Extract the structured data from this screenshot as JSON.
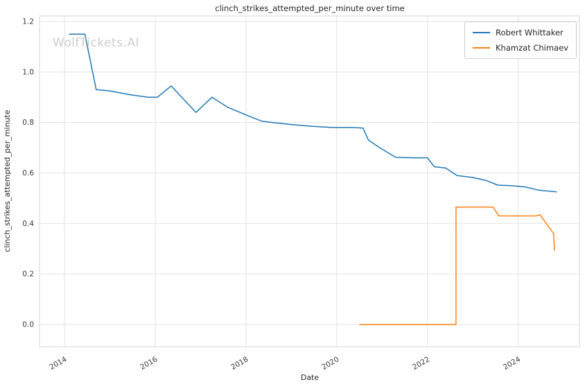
{
  "watermark": "WolfTickets.AI",
  "chart_data": {
    "type": "line",
    "title": "clinch_strikes_attempted_per_minute over time",
    "xlabel": "Date",
    "ylabel": "clinch_strikes_attempted_per_minute",
    "xlim": [
      2013.45,
      2025.35
    ],
    "ylim": [
      -0.088,
      1.222
    ],
    "grid": true,
    "legend_position": "upper right",
    "background": "#ffffff",
    "grid_color": "#e3e3e3",
    "border_color": "#d5d5d5",
    "x_ticks": [
      2014,
      2016,
      2018,
      2020,
      2022,
      2024
    ],
    "x_tick_labels": [
      "2014",
      "2016",
      "2018",
      "2020",
      "2022",
      "2024"
    ],
    "y_ticks": [
      0.0,
      0.2,
      0.4,
      0.6,
      0.8,
      1.0,
      1.2
    ],
    "y_tick_labels": [
      "0.0",
      "0.2",
      "0.4",
      "0.6",
      "0.8",
      "1.0",
      "1.2"
    ],
    "series": [
      {
        "name": "Robert Whittaker",
        "color": "#1f77b4",
        "points": [
          [
            2014.1,
            1.15
          ],
          [
            2014.45,
            1.15
          ],
          [
            2014.7,
            0.93
          ],
          [
            2015.0,
            0.925
          ],
          [
            2015.45,
            0.91
          ],
          [
            2015.85,
            0.9
          ],
          [
            2016.05,
            0.9
          ],
          [
            2016.35,
            0.945
          ],
          [
            2016.9,
            0.84
          ],
          [
            2017.25,
            0.9
          ],
          [
            2017.6,
            0.86
          ],
          [
            2018.0,
            0.83
          ],
          [
            2018.35,
            0.805
          ],
          [
            2018.6,
            0.8
          ],
          [
            2019.0,
            0.792
          ],
          [
            2019.45,
            0.785
          ],
          [
            2019.9,
            0.78
          ],
          [
            2020.35,
            0.78
          ],
          [
            2020.58,
            0.778
          ],
          [
            2020.7,
            0.73
          ],
          [
            2020.95,
            0.7
          ],
          [
            2021.3,
            0.662
          ],
          [
            2021.7,
            0.66
          ],
          [
            2022.0,
            0.66
          ],
          [
            2022.15,
            0.625
          ],
          [
            2022.4,
            0.62
          ],
          [
            2022.65,
            0.59
          ],
          [
            2023.0,
            0.582
          ],
          [
            2023.3,
            0.57
          ],
          [
            2023.55,
            0.552
          ],
          [
            2023.85,
            0.55
          ],
          [
            2024.15,
            0.545
          ],
          [
            2024.45,
            0.532
          ],
          [
            2024.85,
            0.525
          ]
        ]
      },
      {
        "name": "Khamzat Chimaev",
        "color": "#ff7f0e",
        "points": [
          [
            2020.5,
            0.0
          ],
          [
            2022.63,
            0.0
          ],
          [
            2022.63,
            0.465
          ],
          [
            2023.45,
            0.465
          ],
          [
            2023.57,
            0.43
          ],
          [
            2024.4,
            0.43
          ],
          [
            2024.48,
            0.435
          ],
          [
            2024.78,
            0.36
          ],
          [
            2024.8,
            0.293
          ]
        ]
      }
    ]
  }
}
